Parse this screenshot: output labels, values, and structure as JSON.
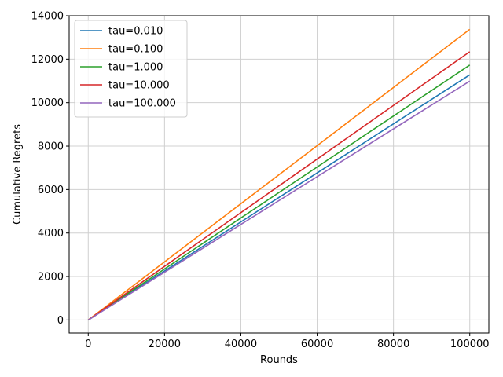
{
  "chart_data": {
    "type": "line",
    "xlabel": "Rounds",
    "ylabel": "Cumulative Regrets",
    "xlim": [
      -5000,
      105000
    ],
    "ylim": [
      -600,
      14000
    ],
    "xticks": [
      0,
      20000,
      40000,
      60000,
      80000,
      100000
    ],
    "yticks": [
      0,
      2000,
      4000,
      6000,
      8000,
      10000,
      12000,
      14000
    ],
    "grid": true,
    "legend_position": "top-left",
    "x": [
      0,
      100000
    ],
    "series": [
      {
        "name": "tau=0.010",
        "color": "#1f77b4",
        "values": [
          0,
          11280
        ]
      },
      {
        "name": "tau=0.100",
        "color": "#ff7f0e",
        "values": [
          0,
          13370
        ]
      },
      {
        "name": "tau=1.000",
        "color": "#2ca02c",
        "values": [
          0,
          11730
        ]
      },
      {
        "name": "tau=10.000",
        "color": "#d62728",
        "values": [
          0,
          12340
        ]
      },
      {
        "name": "tau=100.000",
        "color": "#9467bd",
        "values": [
          0,
          10990
        ]
      }
    ]
  }
}
